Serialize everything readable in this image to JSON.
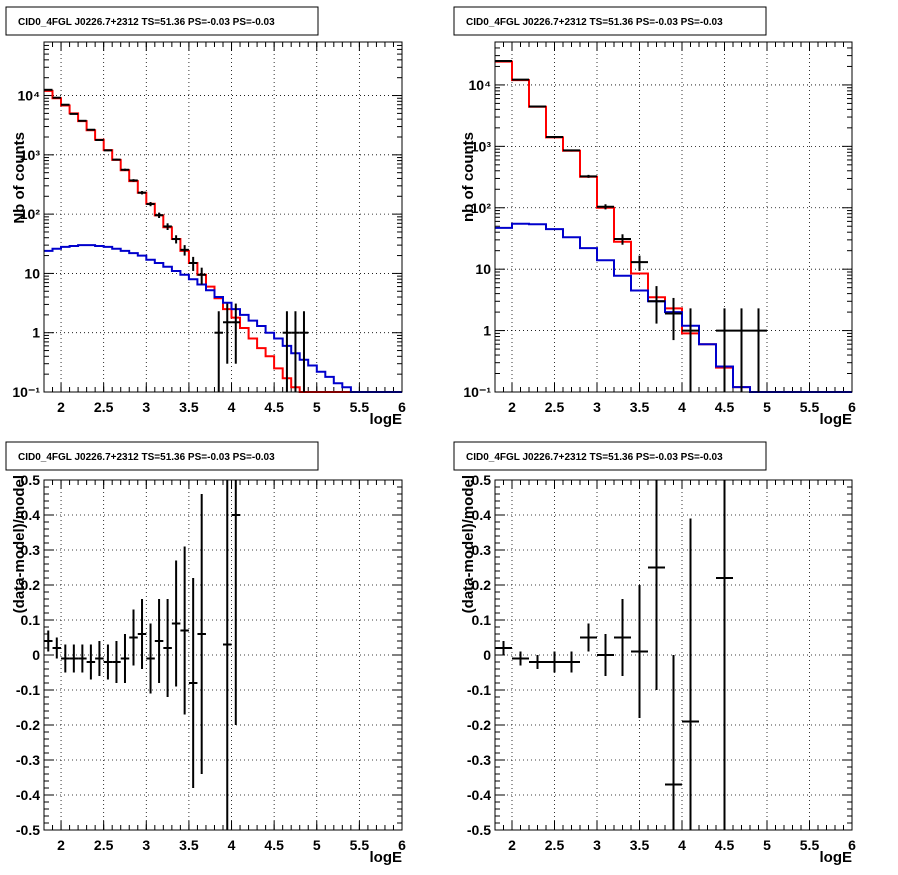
{
  "colors": {
    "model_total": "#ff0000",
    "model_source": "#0000cc",
    "data": "#000000"
  },
  "chart_data": [
    {
      "type": "line",
      "title": "CID0_4FGL J0226.7+2312 TS=51.36 PS=-0.03 PS=-0.03",
      "xlabel": "logE",
      "ylabel": "Nb of counts",
      "xlim": [
        1.8,
        6.0
      ],
      "ylim": [
        0.1,
        80000
      ],
      "yscale": "log",
      "grid": true,
      "xticks": [
        "2",
        "2.5",
        "3",
        "3.5",
        "4",
        "4.5",
        "5",
        "5.5",
        "6"
      ],
      "yticks": [
        "10⁻¹",
        "1",
        "10",
        "10²",
        "10³",
        "10⁴"
      ],
      "bin_edges": [
        1.8,
        1.9,
        2.0,
        2.1,
        2.2,
        2.3,
        2.4,
        2.5,
        2.6,
        2.7,
        2.8,
        2.9,
        3.0,
        3.1,
        3.2,
        3.3,
        3.4,
        3.5,
        3.6,
        3.7,
        3.8,
        3.9,
        4.0,
        4.1,
        4.2,
        4.3,
        4.4,
        4.5,
        4.6,
        4.7,
        4.8,
        4.9,
        5.0,
        5.1,
        5.2,
        5.3,
        5.4,
        5.5,
        5.6,
        5.7,
        5.8,
        5.9,
        6.0
      ],
      "series": [
        {
          "role": "model_total",
          "values": [
            12000,
            9000,
            6800,
            5000,
            3700,
            2600,
            1800,
            1200,
            820,
            550,
            360,
            230,
            150,
            95,
            60,
            38,
            24,
            15,
            9.5,
            6,
            3.8,
            2.5,
            1.8,
            1.2,
            0.8,
            0.55,
            0.4,
            0.25,
            0.17,
            0.12,
            0.1,
            0.1,
            0.1,
            0.1,
            0.1,
            0.1,
            0.1,
            0.1,
            0.1,
            0.1,
            0.1,
            0.1
          ]
        },
        {
          "role": "model_source",
          "values": [
            24,
            26,
            28,
            29,
            30,
            30,
            29,
            28,
            26,
            24,
            22,
            20,
            17,
            15,
            13,
            11,
            9.5,
            8,
            6.5,
            5.2,
            4,
            3.2,
            2.5,
            2,
            1.6,
            1.3,
            1,
            0.8,
            0.6,
            0.45,
            0.35,
            0.28,
            0.22,
            0.18,
            0.14,
            0.12,
            0.1,
            0.1,
            0.1,
            0.1,
            0.1,
            0.1
          ]
        }
      ],
      "points": {
        "x": [
          1.85,
          1.95,
          2.05,
          2.15,
          2.25,
          2.35,
          2.45,
          2.55,
          2.65,
          2.75,
          2.85,
          2.95,
          3.05,
          3.15,
          3.25,
          3.35,
          3.45,
          3.55,
          3.65,
          3.85,
          3.95,
          4.05,
          4.65,
          4.75,
          4.85
        ],
        "y": [
          12500,
          9200,
          7000,
          4900,
          3750,
          2650,
          1780,
          1190,
          830,
          560,
          370,
          230,
          148,
          96,
          62,
          38,
          25,
          15,
          9.5,
          1,
          1.5,
          1.5,
          1,
          1,
          1
        ],
        "yerr_low": [
          110,
          95,
          80,
          70,
          60,
          50,
          40,
          34,
          28,
          23,
          19,
          15,
          12,
          10,
          8,
          6,
          5,
          4,
          3,
          0.9,
          1.2,
          1.2,
          0.9,
          0.9,
          0.9
        ],
        "yerr_high": [
          110,
          95,
          80,
          70,
          60,
          50,
          40,
          34,
          28,
          23,
          19,
          15,
          12,
          10,
          8,
          6,
          5,
          4,
          3,
          1.3,
          1.6,
          1.6,
          1.3,
          1.3,
          1.3
        ]
      }
    },
    {
      "type": "line",
      "title": "CID0_4FGL J0226.7+2312 TS=51.36 PS=-0.03 PS=-0.03",
      "xlabel": "logE",
      "ylabel": "nb of counts",
      "xlim": [
        1.8,
        6.0
      ],
      "ylim": [
        0.1,
        50000
      ],
      "yscale": "log",
      "grid": true,
      "xticks": [
        "2",
        "2.5",
        "3",
        "3.5",
        "4",
        "4.5",
        "5",
        "5.5",
        "6"
      ],
      "yticks": [
        "10⁻¹",
        "1",
        "10",
        "10²",
        "10³",
        "10⁴"
      ],
      "bin_edges": [
        1.8,
        2.0,
        2.2,
        2.4,
        2.6,
        2.8,
        3.0,
        3.2,
        3.4,
        3.6,
        3.8,
        4.0,
        4.2,
        4.4,
        4.6,
        4.8,
        5.0,
        5.2,
        5.4,
        5.6,
        5.8,
        6.0
      ],
      "series": [
        {
          "role": "model_total",
          "values": [
            24000,
            12000,
            4400,
            1400,
            850,
            320,
            100,
            28,
            8.5,
            3.5,
            2.3,
            0.9,
            0.6,
            0.25,
            0.12,
            0.1,
            0.1,
            0.1,
            0.1,
            0.1,
            0.1
          ]
        },
        {
          "role": "model_source",
          "values": [
            47,
            55,
            54,
            45,
            33,
            22,
            14,
            7.8,
            4.5,
            3,
            2,
            1.2,
            0.6,
            0.26,
            0.12,
            0.1,
            0.1,
            0.1,
            0.1,
            0.1,
            0.1
          ]
        }
      ],
      "points": {
        "x": [
          1.9,
          2.1,
          2.3,
          2.5,
          2.7,
          2.9,
          3.1,
          3.3,
          3.5,
          3.7,
          3.9,
          4.1,
          4.5,
          4.7,
          4.9
        ],
        "y": [
          24500,
          12200,
          4450,
          1420,
          860,
          325,
          104,
          31,
          13,
          3,
          1.9,
          1,
          1,
          1,
          1
        ],
        "yerr_low": [
          160,
          110,
          67,
          38,
          29,
          18,
          10,
          6,
          3.6,
          1.7,
          1.2,
          0.9,
          0.9,
          0.9,
          0.9
        ],
        "yerr_high": [
          160,
          110,
          67,
          38,
          29,
          18,
          10,
          6,
          3.6,
          2.3,
          1.5,
          1.3,
          1.3,
          1.3,
          1.3
        ]
      }
    },
    {
      "type": "scatter",
      "title": "CID0_4FGL J0226.7+2312 TS=51.36 PS=-0.03 PS=-0.03",
      "xlabel": "logE",
      "ylabel": "(data-model)/model",
      "xlim": [
        1.8,
        6.0
      ],
      "ylim": [
        -0.5,
        0.5
      ],
      "yscale": "linear",
      "grid": true,
      "xticks": [
        "2",
        "2.5",
        "3",
        "3.5",
        "4",
        "4.5",
        "5",
        "5.5",
        "6"
      ],
      "yticks": [
        "-0.5",
        "-0.4",
        "-0.3",
        "-0.2",
        "-0.1",
        "0",
        "0.1",
        "0.2",
        "0.3",
        "0.4",
        "0.5"
      ],
      "points": {
        "x": [
          1.85,
          1.95,
          2.05,
          2.15,
          2.25,
          2.35,
          2.45,
          2.55,
          2.65,
          2.75,
          2.85,
          2.95,
          3.05,
          3.15,
          3.25,
          3.35,
          3.45,
          3.55,
          3.65,
          3.95,
          4.05
        ],
        "y": [
          0.04,
          0.02,
          -0.01,
          -0.01,
          -0.01,
          -0.02,
          -0.01,
          -0.02,
          -0.02,
          -0.01,
          0.05,
          0.06,
          -0.01,
          0.04,
          0.02,
          0.09,
          0.07,
          -0.08,
          0.06,
          0.03,
          0.4
        ],
        "yerr": [
          0.03,
          0.03,
          0.04,
          0.04,
          0.04,
          0.05,
          0.05,
          0.05,
          0.06,
          0.07,
          0.08,
          0.1,
          0.1,
          0.12,
          0.14,
          0.18,
          0.24,
          0.3,
          0.4,
          0.6,
          0.6
        ]
      }
    },
    {
      "type": "scatter",
      "title": "CID0_4FGL J0226.7+2312 TS=51.36 PS=-0.03 PS=-0.03",
      "xlabel": "logE",
      "ylabel": "(data-model)/model",
      "xlim": [
        1.8,
        6.0
      ],
      "ylim": [
        -0.5,
        0.5
      ],
      "yscale": "linear",
      "grid": true,
      "xticks": [
        "2",
        "2.5",
        "3",
        "3.5",
        "4",
        "4.5",
        "5",
        "5.5",
        "6"
      ],
      "yticks": [
        "-0.5",
        "-0.4",
        "-0.3",
        "-0.2",
        "-0.1",
        "0",
        "0.1",
        "0.2",
        "0.3",
        "0.4",
        "0.5"
      ],
      "points": {
        "x": [
          1.9,
          2.1,
          2.3,
          2.5,
          2.7,
          2.9,
          3.1,
          3.3,
          3.5,
          3.7,
          3.9,
          4.1,
          4.5
        ],
        "y": [
          0.02,
          -0.01,
          -0.02,
          -0.02,
          -0.02,
          0.05,
          0.0,
          0.05,
          0.01,
          0.25,
          -0.37,
          -0.19,
          0.22
        ],
        "yerr": [
          0.02,
          0.02,
          0.02,
          0.03,
          0.03,
          0.04,
          0.06,
          0.11,
          0.19,
          0.35,
          0.37,
          0.58,
          0.72
        ]
      }
    }
  ]
}
